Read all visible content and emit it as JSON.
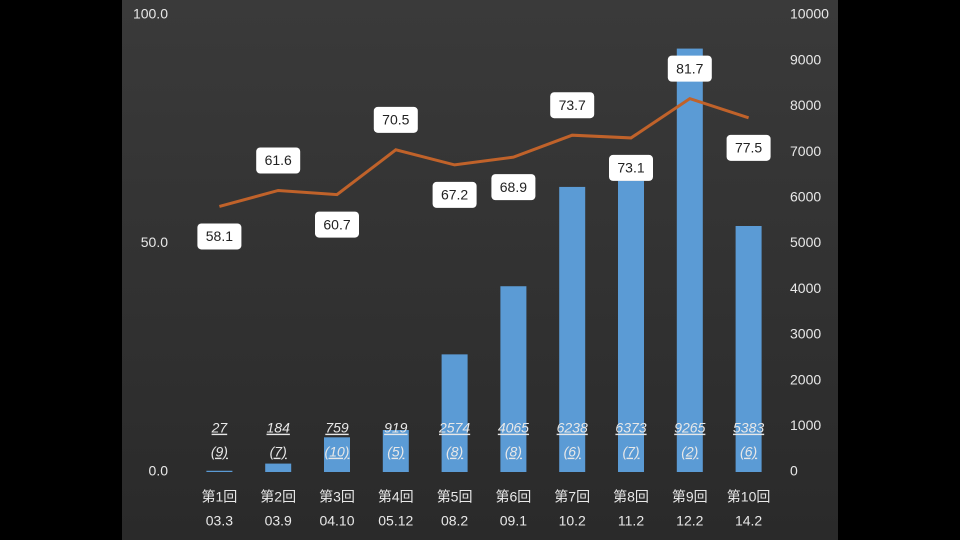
{
  "chart_data": {
    "type": "bar-line",
    "categories": [
      "第1回",
      "第2回",
      "第3回",
      "第4回",
      "第5回",
      "第6回",
      "第7回",
      "第8回",
      "第9回",
      "第10回"
    ],
    "category_dates": [
      "03.3",
      "03.9",
      "04.10",
      "05.12",
      "08.2",
      "09.1",
      "10.2",
      "11.2",
      "12.2",
      "14.2"
    ],
    "series": [
      {
        "type": "bar",
        "axis": "y2",
        "color": "#5b9bd5",
        "values": [
          27,
          184,
          759,
          919,
          2574,
          4065,
          6238,
          6373,
          9265,
          5383
        ],
        "sub_values": [
          9,
          7,
          10,
          5,
          8,
          8,
          6,
          7,
          2,
          6
        ],
        "sub_value_labels": [
          "(9)",
          "(7)",
          "(10)",
          "(5)",
          "(8)",
          "(8)",
          "(6)",
          "(7)",
          "(2)",
          "(6)"
        ]
      },
      {
        "type": "line",
        "color": "#c0622a",
        "values": [
          58.1,
          61.6,
          60.7,
          70.5,
          67.2,
          68.9,
          73.7,
          73.1,
          81.7,
          77.5
        ]
      }
    ],
    "ylim": [
      0,
      100
    ],
    "yticks": [
      {
        "value": 0,
        "label": "0.0"
      },
      {
        "value": 50,
        "label": "50.0"
      },
      {
        "value": 100,
        "label": "100.0"
      }
    ],
    "y2lim": [
      0,
      10000
    ],
    "y2ticks": [
      0,
      1000,
      2000,
      3000,
      4000,
      5000,
      6000,
      7000,
      8000,
      9000,
      10000
    ]
  }
}
